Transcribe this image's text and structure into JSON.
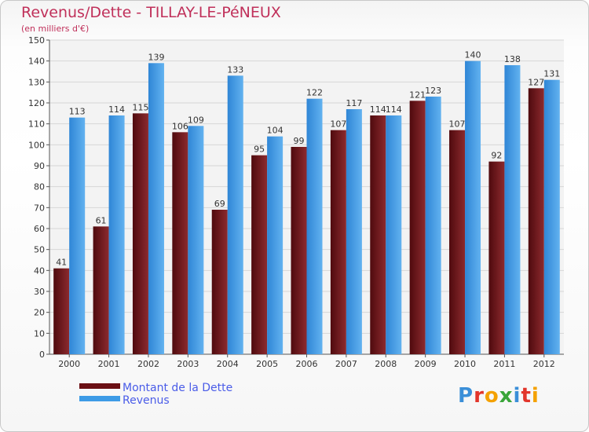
{
  "chart_data": {
    "type": "bar",
    "title": "Revenus/Dette - TILLAY-LE-PéNEUX",
    "subtitle": "(en milliers d'€)",
    "categories": [
      "2000",
      "2001",
      "2002",
      "2003",
      "2004",
      "2005",
      "2006",
      "2007",
      "2008",
      "2009",
      "2010",
      "2011",
      "2012"
    ],
    "series": [
      {
        "name": "Montant de la Dette",
        "color": "#6b0f14",
        "values": [
          41,
          61,
          115,
          106,
          69,
          95,
          99,
          107,
          114,
          121,
          107,
          92,
          127
        ]
      },
      {
        "name": "Revenus",
        "color": "#3d9be6",
        "values": [
          113,
          114,
          139,
          109,
          133,
          104,
          122,
          117,
          114,
          123,
          140,
          138,
          131
        ]
      }
    ],
    "ylim": [
      0,
      150
    ],
    "yticks": [
      0,
      10,
      20,
      30,
      40,
      50,
      60,
      70,
      80,
      90,
      100,
      110,
      120,
      130,
      140,
      150
    ],
    "grid": true,
    "legend_position": "bottom-left"
  },
  "logo": {
    "text": "Proxiti",
    "letters": [
      {
        "ch": "P",
        "color": "#3b8fd8"
      },
      {
        "ch": "r",
        "color": "#e2352b"
      },
      {
        "ch": "o",
        "color": "#f4a100"
      },
      {
        "ch": "x",
        "color": "#3aa53a"
      },
      {
        "ch": "i",
        "color": "#3b8fd8"
      },
      {
        "ch": "t",
        "color": "#e2352b"
      },
      {
        "ch": "i",
        "color": "#f4a100"
      }
    ]
  },
  "colors": {
    "title": "#c0305a",
    "legend_text": "#4a5ce8",
    "grid": "#d6d6d6"
  }
}
